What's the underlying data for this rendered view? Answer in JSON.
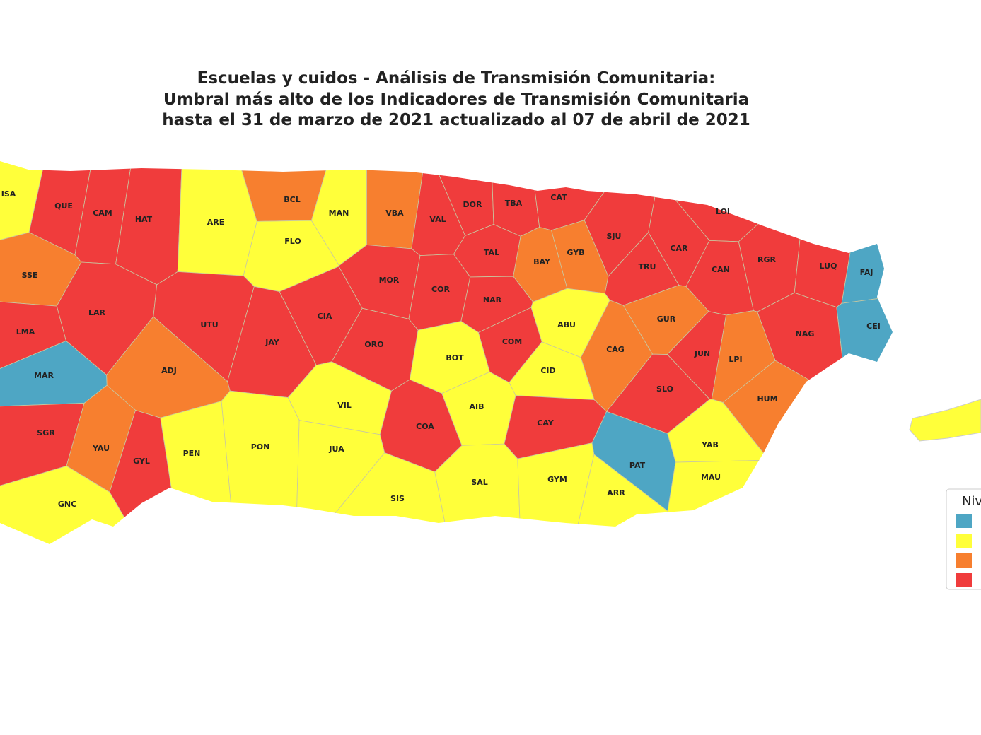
{
  "title": [
    "Escuelas y cuidos - Análisis de Transmisión Comunitaria:",
    "Umbral más alto de los Indicadores de Transmisión Comunitaria",
    "hasta el 31 de marzo de 2021 actualizado al 07 de abril de 2021"
  ],
  "municipalities": [
    {
      "label": "ISA",
      "color": "#ffff3a"
    },
    {
      "label": "QUE",
      "color": "#f03c3c"
    },
    {
      "label": "CAM",
      "color": "#f03c3c"
    },
    {
      "label": "HAT",
      "color": "#f03c3c"
    },
    {
      "label": "ARE",
      "color": "#ffff3a"
    },
    {
      "label": "BCL",
      "color": "#f77f2f"
    },
    {
      "label": "FLO",
      "color": "#ffff3a"
    },
    {
      "label": "MAN",
      "color": "#ffff3a"
    },
    {
      "label": "VBA",
      "color": "#f77f2f"
    },
    {
      "label": "VAL",
      "color": "#f03c3c"
    },
    {
      "label": "DOR",
      "color": "#f03c3c"
    },
    {
      "label": "TBA",
      "color": "#f03c3c"
    },
    {
      "label": "CAT",
      "color": "#f03c3c"
    },
    {
      "label": "SJU",
      "color": "#f03c3c"
    },
    {
      "label": "LOI",
      "color": "#f03c3c"
    },
    {
      "label": "CAR",
      "color": "#f03c3c"
    },
    {
      "label": "TRU",
      "color": "#f03c3c"
    },
    {
      "label": "CAN",
      "color": "#f03c3c"
    },
    {
      "label": "RGR",
      "color": "#f03c3c"
    },
    {
      "label": "LUQ",
      "color": "#f03c3c"
    },
    {
      "label": "FAJ",
      "color": "#4ea6c4"
    },
    {
      "label": "CEI",
      "color": "#4ea6c4"
    },
    {
      "label": "GYB",
      "color": "#f77f2f"
    },
    {
      "label": "BAY",
      "color": "#f77f2f"
    },
    {
      "label": "TAL",
      "color": "#f03c3c"
    },
    {
      "label": "SSE",
      "color": "#f77f2f"
    },
    {
      "label": "LAR",
      "color": "#f03c3c"
    },
    {
      "label": "UTU",
      "color": "#f03c3c"
    },
    {
      "label": "MOR",
      "color": "#f03c3c"
    },
    {
      "label": "COR",
      "color": "#f03c3c"
    },
    {
      "label": "NAR",
      "color": "#f03c3c"
    },
    {
      "label": "CIA",
      "color": "#f03c3c"
    },
    {
      "label": "ABU",
      "color": "#ffff3a"
    },
    {
      "label": "GUR",
      "color": "#f77f2f"
    },
    {
      "label": "NAG",
      "color": "#f03c3c"
    },
    {
      "label": "LMA",
      "color": "#f03c3c"
    },
    {
      "label": "JAY",
      "color": "#f03c3c"
    },
    {
      "label": "ORO",
      "color": "#f03c3c"
    },
    {
      "label": "COM",
      "color": "#f03c3c"
    },
    {
      "label": "CAG",
      "color": "#f77f2f"
    },
    {
      "label": "BOT",
      "color": "#ffff3a"
    },
    {
      "label": "JUN",
      "color": "#f03c3c"
    },
    {
      "label": "LPI",
      "color": "#f77f2f"
    },
    {
      "label": "ADJ",
      "color": "#f77f2f"
    },
    {
      "label": "MAR",
      "color": "#4ea6c4"
    },
    {
      "label": "CID",
      "color": "#ffff3a"
    },
    {
      "label": "SLO",
      "color": "#f03c3c"
    },
    {
      "label": "HUM",
      "color": "#f77f2f"
    },
    {
      "label": "VIL",
      "color": "#ffff3a"
    },
    {
      "label": "AIB",
      "color": "#ffff3a"
    },
    {
      "label": "CAY",
      "color": "#f03c3c"
    },
    {
      "label": "COA",
      "color": "#f03c3c"
    },
    {
      "label": "SGR",
      "color": "#f03c3c"
    },
    {
      "label": "YAU",
      "color": "#f77f2f"
    },
    {
      "label": "PON",
      "color": "#ffff3a"
    },
    {
      "label": "JUA",
      "color": "#ffff3a"
    },
    {
      "label": "YAB",
      "color": "#ffff3a"
    },
    {
      "label": "PEN",
      "color": "#ffff3a"
    },
    {
      "label": "GYL",
      "color": "#f03c3c"
    },
    {
      "label": "PAT",
      "color": "#4ea6c4"
    },
    {
      "label": "MAU",
      "color": "#ffff3a"
    },
    {
      "label": "SAL",
      "color": "#ffff3a"
    },
    {
      "label": "GYM",
      "color": "#ffff3a"
    },
    {
      "label": "ARR",
      "color": "#ffff3a"
    },
    {
      "label": "SIS",
      "color": "#ffff3a"
    },
    {
      "label": "GNC",
      "color": "#ffff3a"
    }
  ],
  "legend": {
    "title": "Niv",
    "colors": [
      "#4ea6c4",
      "#ffff3a",
      "#f77f2f",
      "#f03c3c"
    ]
  }
}
